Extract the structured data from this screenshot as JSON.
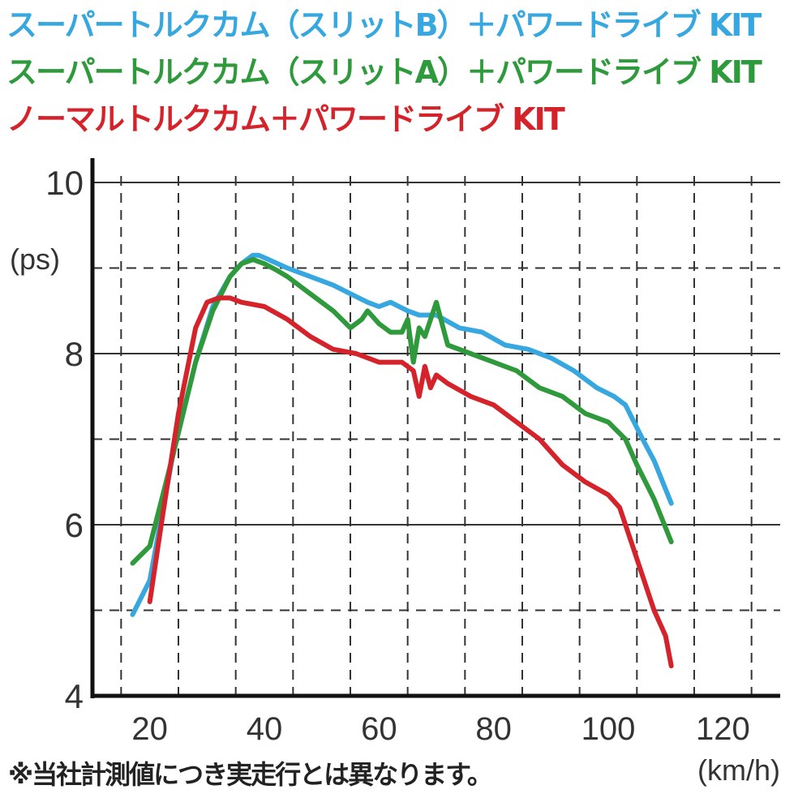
{
  "chart_data": {
    "type": "line",
    "title": "",
    "xlabel": "(km/h)",
    "ylabel": "(ps)",
    "xlim": [
      10,
      130
    ],
    "ylim": [
      4,
      10
    ],
    "x_ticks": [
      "20",
      "40",
      "60",
      "80",
      "100",
      "120"
    ],
    "y_ticks": [
      "4",
      "6",
      "8",
      "10"
    ],
    "grid": true,
    "series": [
      {
        "name": "スーパートルクカム（スリットB）＋パワードライブ KIT",
        "color": "#36a7df",
        "x": [
          17,
          20,
          24,
          28,
          31,
          34,
          36,
          38,
          39,
          40,
          44,
          48,
          52,
          55,
          58,
          60,
          62,
          65,
          67,
          70,
          74,
          78,
          82,
          86,
          90,
          94,
          98,
          101,
          103,
          106,
          108,
          111
        ],
        "y": [
          4.95,
          5.35,
          6.8,
          7.9,
          8.55,
          8.9,
          9.05,
          9.15,
          9.15,
          9.12,
          9.0,
          8.9,
          8.8,
          8.7,
          8.6,
          8.55,
          8.6,
          8.5,
          8.45,
          8.45,
          8.3,
          8.25,
          8.1,
          8.05,
          7.95,
          7.8,
          7.6,
          7.5,
          7.4,
          7.0,
          6.75,
          6.25
        ]
      },
      {
        "name": "スーパートルクカム（スリットA）＋パワードライブ KIT",
        "color": "#2f9a3c",
        "x": [
          17,
          20,
          24,
          28,
          31,
          34,
          36,
          38,
          40,
          42,
          44,
          48,
          52,
          55,
          57,
          58,
          60,
          62,
          64,
          65,
          66,
          67,
          68,
          70,
          72,
          76,
          80,
          84,
          88,
          92,
          96,
          100,
          103,
          105,
          108,
          111
        ],
        "y": [
          5.55,
          5.75,
          6.8,
          7.9,
          8.5,
          8.9,
          9.05,
          9.1,
          9.05,
          8.98,
          8.9,
          8.7,
          8.5,
          8.3,
          8.4,
          8.5,
          8.35,
          8.25,
          8.25,
          8.4,
          7.9,
          8.3,
          8.2,
          8.6,
          8.1,
          8.0,
          7.9,
          7.8,
          7.6,
          7.5,
          7.3,
          7.2,
          7.0,
          6.7,
          6.3,
          5.8
        ]
      },
      {
        "name": "ノーマルトルクカム＋パワードライブ KIT",
        "color": "#d4232b",
        "x": [
          20,
          22,
          25,
          28,
          30,
          32,
          34,
          36,
          40,
          44,
          48,
          52,
          56,
          60,
          64,
          66,
          67,
          68,
          69,
          70,
          72,
          76,
          80,
          84,
          88,
          92,
          96,
          100,
          102,
          104,
          106,
          108,
          109,
          110,
          111
        ],
        "y": [
          5.1,
          6.0,
          7.3,
          8.3,
          8.6,
          8.65,
          8.65,
          8.6,
          8.55,
          8.4,
          8.2,
          8.05,
          8.0,
          7.9,
          7.9,
          7.8,
          7.5,
          7.85,
          7.6,
          7.75,
          7.65,
          7.5,
          7.4,
          7.2,
          7.0,
          6.7,
          6.5,
          6.35,
          6.2,
          5.8,
          5.4,
          5.0,
          4.85,
          4.7,
          4.35
        ]
      }
    ]
  },
  "note": "※当社計測値につき実走行とは異なります。"
}
